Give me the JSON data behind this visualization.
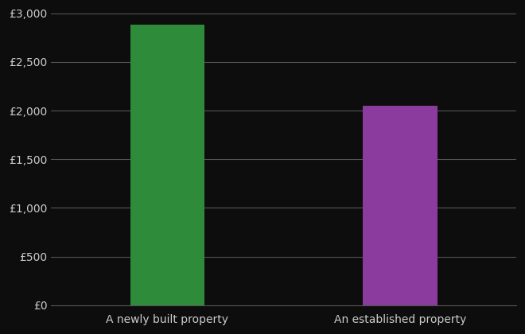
{
  "categories": [
    "A newly built property",
    "An established property"
  ],
  "values": [
    2880,
    2050
  ],
  "bar_colors": [
    "#2e8b3a",
    "#8b3a9e"
  ],
  "background_color": "#0d0d0d",
  "text_color": "#cccccc",
  "grid_color": "#555555",
  "ylim": [
    0,
    3000
  ],
  "yticks": [
    0,
    500,
    1000,
    1500,
    2000,
    2500,
    3000
  ],
  "bar_width": 0.32,
  "figsize": [
    6.6,
    4.2
  ],
  "dpi": 100,
  "xlabel_fontsize": 10,
  "ylabel_fontsize": 10
}
